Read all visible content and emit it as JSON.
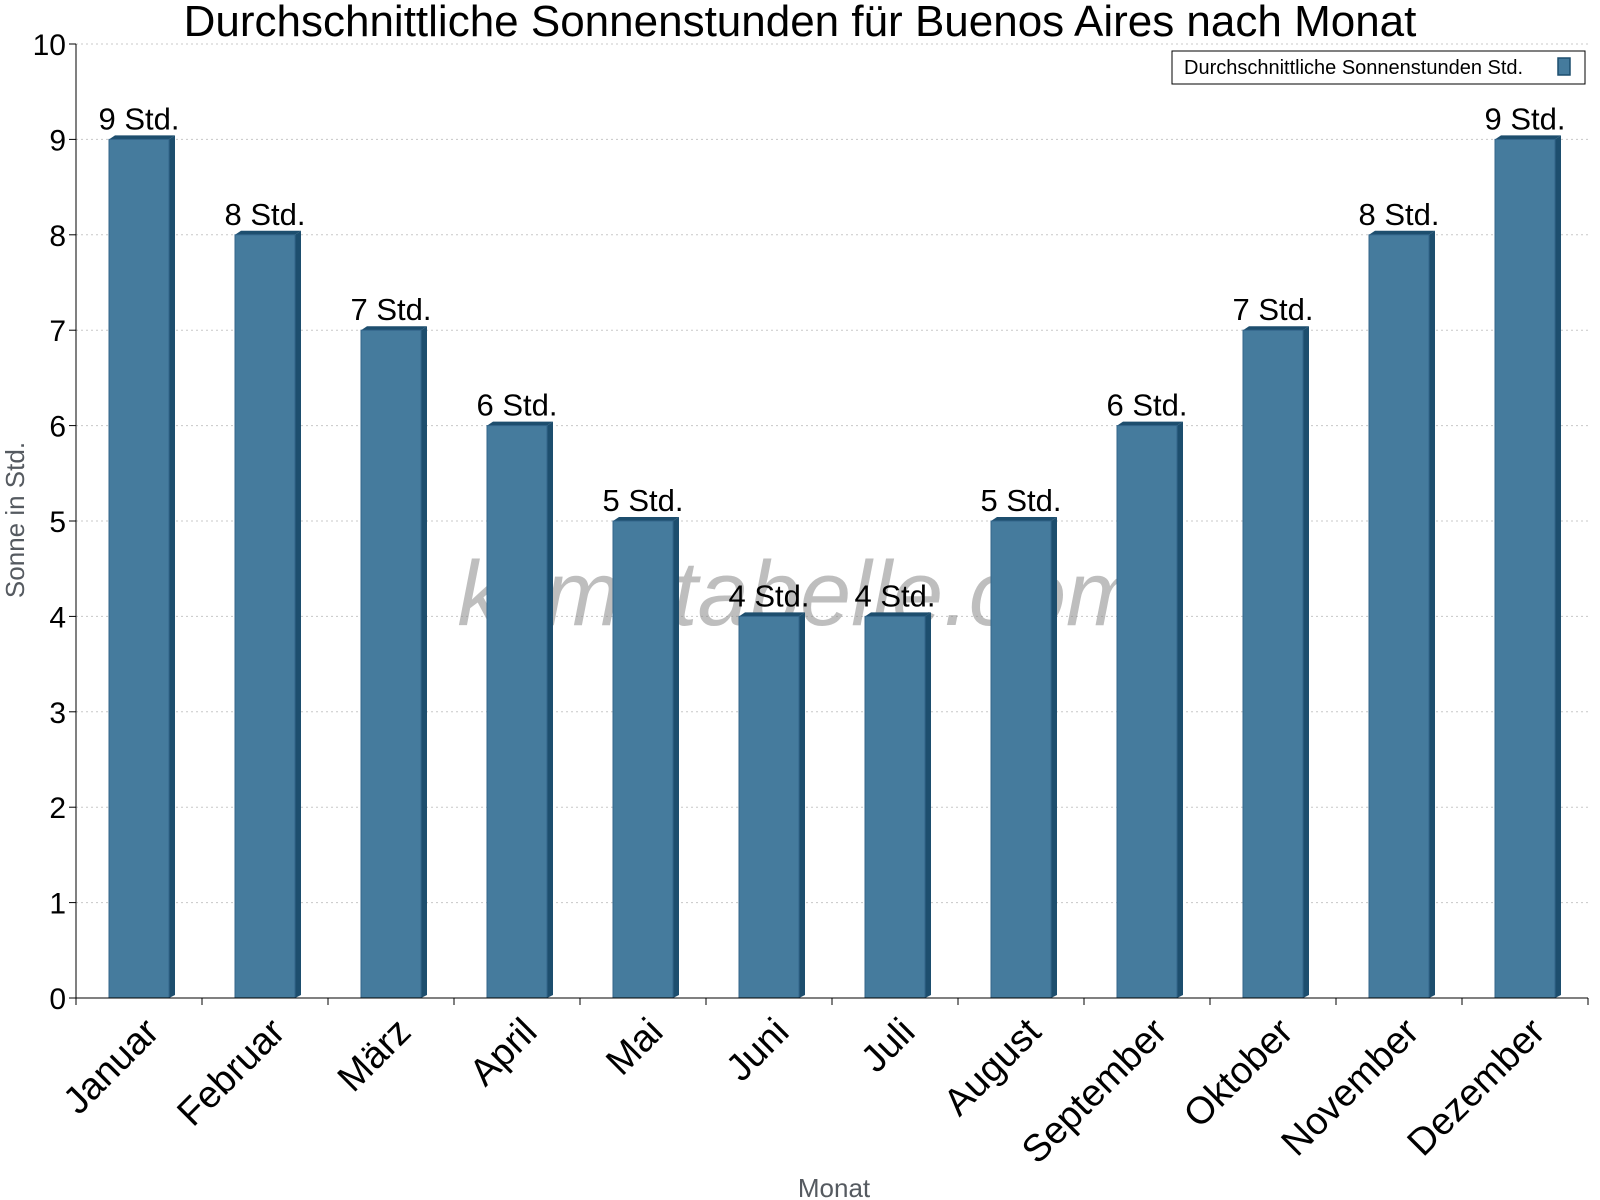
{
  "chart_data": {
    "type": "bar",
    "title": "Durchschnittliche Sonnenstunden für Buenos Aires nach Monat",
    "xlabel": "Monat",
    "ylabel": "Sonne in Std.",
    "ylim": [
      0,
      10
    ],
    "yticks": [
      0,
      1,
      2,
      3,
      4,
      5,
      6,
      7,
      8,
      9,
      10
    ],
    "grid": true,
    "legend_position": "top-right",
    "categories": [
      "Januar",
      "Februar",
      "März",
      "April",
      "Mai",
      "Juni",
      "Juli",
      "August",
      "September",
      "Oktober",
      "November",
      "Dezember"
    ],
    "series": [
      {
        "name": "Durchschnittliche Sonnenstunden Std.",
        "values": [
          9,
          8,
          7,
          6,
          5,
          4,
          4,
          5,
          6,
          7,
          8,
          9
        ],
        "labels": [
          "9 Std.",
          "8 Std.",
          "7 Std.",
          "6 Std.",
          "5 Std.",
          "4 Std.",
          "4 Std.",
          "5 Std.",
          "6 Std.",
          "7 Std.",
          "8 Std.",
          "9 Std."
        ],
        "color": "#457b9d",
        "side_color": "#1d4e6e"
      }
    ],
    "watermark": "klimatabelle.com"
  }
}
